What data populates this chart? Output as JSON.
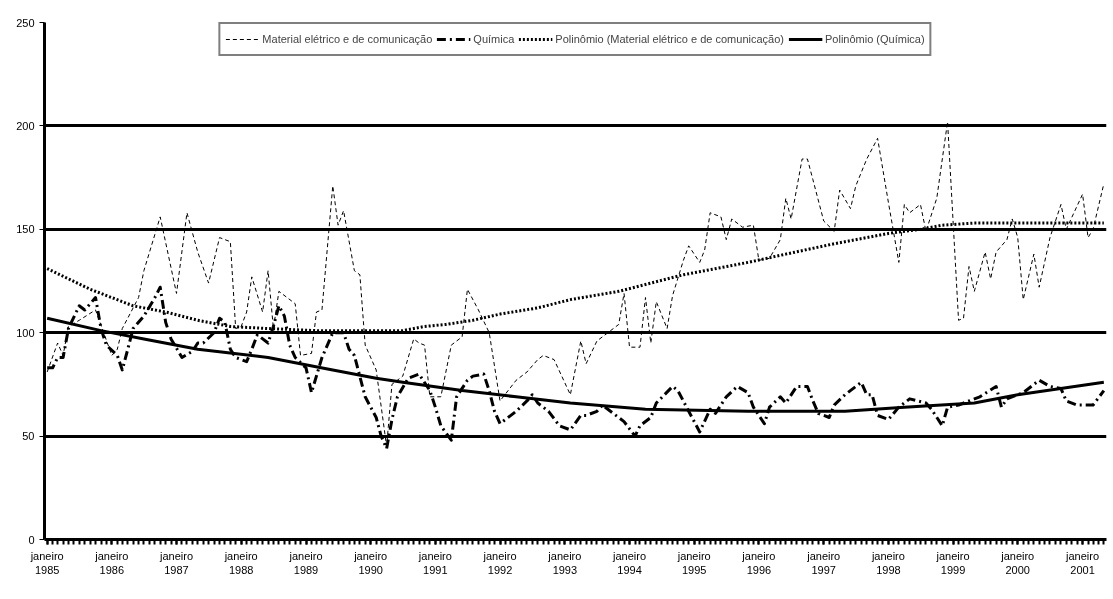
{
  "chart_data": {
    "type": "line",
    "xlim": [
      "1985-01",
      "2001-05"
    ],
    "xticks": [
      {
        "value": "1985-01",
        "label": "janeiro\n1985"
      },
      {
        "value": "1986-01",
        "label": "janeiro\n1986"
      },
      {
        "value": "1987-01",
        "label": "janeiro\n1987"
      },
      {
        "value": "1988-01",
        "label": "janeiro\n1988"
      },
      {
        "value": "1989-01",
        "label": "janeiro\n1989"
      },
      {
        "value": "1990-01",
        "label": "janeiro\n1990"
      },
      {
        "value": "1991-01",
        "label": "janeiro\n1991"
      },
      {
        "value": "1992-01",
        "label": "janeiro\n1992"
      },
      {
        "value": "1993-01",
        "label": "janeiro\n1993"
      },
      {
        "value": "1994-01",
        "label": "janeiro\n1994"
      },
      {
        "value": "1995-01",
        "label": "janeiro\n1995"
      },
      {
        "value": "1996-01",
        "label": "janeiro\n1996"
      },
      {
        "value": "1997-01",
        "label": "janeiro\n1997"
      },
      {
        "value": "1998-01",
        "label": "janeiro\n1998"
      },
      {
        "value": "1999-01",
        "label": "janeiro\n1999"
      },
      {
        "value": "2000-01",
        "label": "janeiro\n2000"
      },
      {
        "value": "2001-01",
        "label": "janeiro\n2001"
      }
    ],
    "ylim": [
      0,
      250
    ],
    "yticks": [
      0,
      50,
      100,
      150,
      200,
      250
    ],
    "grid": "y",
    "legend": "top",
    "series": [
      {
        "name": "Material elétrico e de comunicação",
        "color": "#000000",
        "line_style": "dashed",
        "x": [
          "1985-01",
          "1985-03",
          "1985-04",
          "1985-05",
          "1985-07",
          "1985-10",
          "1986-01",
          "1986-02",
          "1986-03",
          "1986-06",
          "1986-07",
          "1986-10",
          "1987-01",
          "1987-03",
          "1987-05",
          "1987-07",
          "1987-09",
          "1987-11",
          "1987-12",
          "1988-01",
          "1988-02",
          "1988-03",
          "1988-05",
          "1988-06",
          "1988-07",
          "1988-08",
          "1988-11",
          "1988-12",
          "1989-02",
          "1989-03",
          "1989-04",
          "1989-06",
          "1989-07",
          "1989-08",
          "1989-10",
          "1989-11",
          "1989-12",
          "1990-02",
          "1990-04",
          "1990-05",
          "1990-07",
          "1990-09",
          "1990-10",
          "1990-11",
          "1990-12",
          "1991-02",
          "1991-04",
          "1991-06",
          "1991-07",
          "1991-09",
          "1991-11",
          "1992-01",
          "1992-04",
          "1992-06",
          "1992-08",
          "1992-09",
          "1992-11",
          "1993-02",
          "1993-04",
          "1993-05",
          "1993-07",
          "1993-09",
          "1993-11",
          "1993-12",
          "1994-01",
          "1994-03",
          "1994-04",
          "1994-05",
          "1994-06",
          "1994-08",
          "1994-09",
          "1994-11",
          "1994-12",
          "1995-02",
          "1995-03",
          "1995-04",
          "1995-06",
          "1995-07",
          "1995-08",
          "1995-10",
          "1995-12",
          "1996-01",
          "1996-03",
          "1996-05",
          "1996-06",
          "1996-07",
          "1996-09",
          "1996-10",
          "1996-11",
          "1997-01",
          "1997-03",
          "1997-04",
          "1997-06",
          "1997-07",
          "1997-09",
          "1997-11",
          "1998-01",
          "1998-03",
          "1998-04",
          "1998-05",
          "1998-07",
          "1998-08",
          "1998-10",
          "1998-12",
          "1999-02",
          "1999-03",
          "1999-04",
          "1999-05",
          "1999-07",
          "1999-08",
          "1999-09",
          "1999-11",
          "1999-12",
          "2000-01",
          "2000-02",
          "2000-04",
          "2000-05",
          "2000-07",
          "2000-09",
          "2000-10",
          "2001-01",
          "2001-02",
          "2001-03",
          "2001-05"
        ],
        "values": [
          81,
          95,
          89,
          103,
          106,
          111,
          89,
          92,
          102,
          117,
          130,
          156,
          119,
          158,
          139,
          124,
          146,
          144,
          102,
          103,
          110,
          127,
          110,
          130,
          102,
          120,
          114,
          89,
          90,
          110,
          111,
          171,
          152,
          159,
          130,
          128,
          94,
          82,
          45,
          75,
          79,
          97,
          95,
          94,
          69,
          69,
          94,
          98,
          121,
          111,
          100,
          67,
          77,
          81,
          87,
          89,
          87,
          70,
          96,
          85,
          96,
          100,
          104,
          119,
          93,
          93,
          117,
          95,
          115,
          102,
          118,
          135,
          142,
          134,
          140,
          158,
          156,
          145,
          155,
          151,
          152,
          135,
          136,
          145,
          165,
          155,
          184,
          184,
          174,
          154,
          149,
          169,
          160,
          171,
          184,
          194,
          163,
          134,
          162,
          158,
          162,
          149,
          165,
          202,
          106,
          107,
          132,
          120,
          139,
          126,
          139,
          145,
          155,
          146,
          116,
          138,
          122,
          146,
          162,
          150,
          167,
          146,
          150,
          172
        ]
      },
      {
        "name": "Química",
        "color": "#000000",
        "line_style": "dashdot",
        "x": [
          "1985-01",
          "1985-02",
          "1985-03",
          "1985-04",
          "1985-05",
          "1985-07",
          "1985-08",
          "1985-10",
          "1985-11",
          "1985-12",
          "1986-02",
          "1986-03",
          "1986-04",
          "1986-05",
          "1986-07",
          "1986-09",
          "1986-10",
          "1986-11",
          "1986-12",
          "1987-02",
          "1987-04",
          "1987-05",
          "1987-06",
          "1987-08",
          "1987-09",
          "1987-10",
          "1987-11",
          "1987-12",
          "1988-02",
          "1988-03",
          "1988-04",
          "1988-06",
          "1988-07",
          "1988-08",
          "1988-09",
          "1988-10",
          "1988-11",
          "1989-01",
          "1989-02",
          "1989-04",
          "1989-06",
          "1989-08",
          "1989-09",
          "1989-10",
          "1989-12",
          "1990-01",
          "1990-02",
          "1990-03",
          "1990-04",
          "1990-05",
          "1990-06",
          "1990-08",
          "1990-10",
          "1990-12",
          "1991-01",
          "1991-02",
          "1991-04",
          "1991-05",
          "1991-07",
          "1991-08",
          "1991-10",
          "1991-11",
          "1991-12",
          "1992-01",
          "1992-04",
          "1992-06",
          "1992-07",
          "1992-08",
          "1992-10",
          "1992-12",
          "1993-02",
          "1993-04",
          "1993-05",
          "1993-07",
          "1993-08",
          "1993-10",
          "1993-12",
          "1994-02",
          "1994-03",
          "1994-05",
          "1994-06",
          "1994-09",
          "1994-10",
          "1994-12",
          "1995-02",
          "1995-04",
          "1995-05",
          "1995-07",
          "1995-09",
          "1995-11",
          "1995-12",
          "1996-02",
          "1996-03",
          "1996-05",
          "1996-06",
          "1996-08",
          "1996-10",
          "1996-11",
          "1996-12",
          "1997-02",
          "1997-03",
          "1997-05",
          "1997-08",
          "1997-09",
          "1997-10",
          "1997-11",
          "1998-01",
          "1998-03",
          "1998-05",
          "1998-08",
          "1998-09",
          "1998-11",
          "1998-12",
          "1999-02",
          "1999-04",
          "1999-06",
          "1999-09",
          "1999-10",
          "1999-11",
          "2000-02",
          "2000-05",
          "2000-07",
          "2000-09",
          "2000-10",
          "2000-12",
          "2001-03",
          "2001-05"
        ],
        "values": [
          83,
          83,
          88,
          88,
          102,
          113,
          111,
          117,
          102,
          94,
          89,
          82,
          92,
          102,
          108,
          117,
          122,
          105,
          97,
          88,
          91,
          95,
          95,
          100,
          107,
          105,
          92,
          88,
          86,
          92,
          99,
          95,
          103,
          113,
          108,
          94,
          88,
          83,
          71,
          88,
          100,
          100,
          92,
          89,
          69,
          64,
          59,
          50,
          44,
          58,
          69,
          78,
          80,
          72,
          64,
          55,
          48,
          69,
          77,
          79,
          80,
          72,
          62,
          56,
          62,
          67,
          70,
          66,
          62,
          55,
          53,
          60,
          60,
          62,
          65,
          61,
          57,
          50,
          55,
          59,
          66,
          74,
          72,
          62,
          52,
          63,
          61,
          69,
          74,
          71,
          64,
          56,
          64,
          69,
          66,
          74,
          74,
          67,
          61,
          59,
          65,
          70,
          76,
          70,
          70,
          60,
          58,
          64,
          68,
          66,
          63,
          55,
          64,
          65,
          67,
          69,
          74,
          64,
          68,
          71,
          77,
          74,
          73,
          67,
          65,
          65,
          72
        ]
      },
      {
        "name": "Polinômio (Material elétrico e de comunicação)",
        "color": "#000000",
        "line_style": "dotted",
        "x": [
          "1985-01",
          "1985-09",
          "1986-05",
          "1986-11",
          "1987-05",
          "1987-11",
          "1988-06",
          "1989-03",
          "1990-02",
          "1990-07",
          "1990-11",
          "1991-03",
          "1991-08",
          "1992-01",
          "1992-08",
          "1993-02",
          "1993-11",
          "1994-05",
          "1994-11",
          "1995-11",
          "1996-06",
          "1997-03",
          "1998-01",
          "1998-07",
          "1998-11",
          "1999-05",
          "2001-05"
        ],
        "values": [
          131,
          121,
          113,
          110,
          106,
          103,
          102,
          101,
          101,
          101,
          103,
          104,
          106,
          109,
          112,
          116,
          120,
          124,
          128,
          134,
          138,
          143,
          148,
          150,
          152,
          153,
          153
        ]
      },
      {
        "name": "Polinômio (Química)",
        "color": "#000000",
        "line_style": "solid",
        "x": [
          "1985-01",
          "1985-11",
          "1986-07",
          "1987-05",
          "1988-06",
          "1989-06",
          "1990-02",
          "1990-07",
          "1991-06",
          "1992-04",
          "1993-02",
          "1994-04",
          "1995-11",
          "1997-05",
          "1998-04",
          "1999-05",
          "2000-01",
          "2001-05"
        ],
        "values": [
          107,
          101,
          97,
          92,
          88,
          82,
          78,
          76,
          72,
          69,
          66,
          63,
          62,
          62,
          64,
          66,
          70,
          76
        ]
      }
    ]
  }
}
